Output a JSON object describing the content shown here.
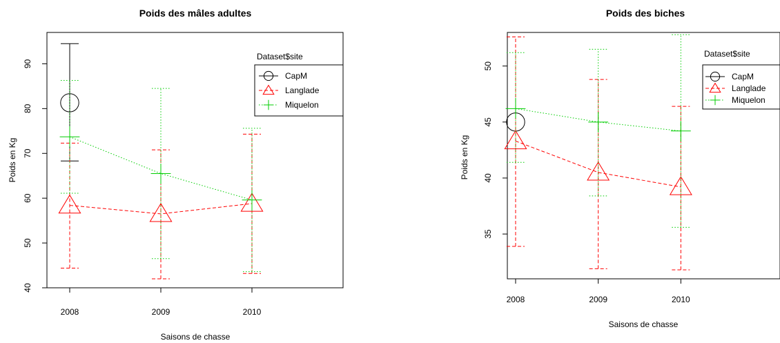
{
  "chart_data": [
    {
      "type": "line",
      "title": "Poids des mâles adultes",
      "xlabel": "Saisons de chasse",
      "ylabel": "Poids en Kg",
      "x": [
        "2008",
        "2009",
        "2010"
      ],
      "xlim": [
        0.75,
        4.0
      ],
      "ylim": [
        40,
        97
      ],
      "yticks": [
        "40",
        "50",
        "60",
        "70",
        "80",
        "90"
      ],
      "legend": {
        "title": "Dataset$site",
        "position": "top-right"
      },
      "series": [
        {
          "name": "CapM",
          "color": "#000000",
          "marker": "circle",
          "dash": "solid",
          "values": [
            81.3,
            null,
            null
          ],
          "lower": [
            68.3,
            null,
            null
          ],
          "upper": [
            94.5,
            null,
            null
          ]
        },
        {
          "name": "Langlade",
          "color": "#ff0000",
          "marker": "triangle",
          "dash": "dashed",
          "values": [
            58.4,
            56.5,
            58.8
          ],
          "lower": [
            44.4,
            42.0,
            43.2
          ],
          "upper": [
            72.3,
            70.8,
            74.3
          ]
        },
        {
          "name": "Miquelon",
          "color": "#00cd00",
          "marker": "plus",
          "dash": "dotted",
          "values": [
            73.7,
            65.5,
            59.6
          ],
          "lower": [
            61.1,
            46.5,
            43.6
          ],
          "upper": [
            86.3,
            84.5,
            75.6
          ]
        }
      ]
    },
    {
      "type": "line",
      "title": "Poids des biches",
      "xlabel": "Saisons de chasse",
      "ylabel": "Poids en Kg",
      "x": [
        "2008",
        "2009",
        "2010"
      ],
      "xlim": [
        0.9,
        4.2
      ],
      "ylim": [
        31.0,
        53.0
      ],
      "yticks": [
        "35",
        "40",
        "45",
        "50"
      ],
      "legend": {
        "title": "Dataset$site",
        "position": "top-right"
      },
      "series": [
        {
          "name": "CapM",
          "color": "#000000",
          "marker": "circle",
          "dash": "solid",
          "values": [
            45.0,
            null,
            null
          ],
          "lower": [
            null,
            null,
            null
          ],
          "upper": [
            null,
            null,
            null
          ]
        },
        {
          "name": "Langlade",
          "color": "#ff0000",
          "marker": "triangle",
          "dash": "dashed",
          "values": [
            43.3,
            40.5,
            39.2
          ],
          "lower": [
            33.9,
            31.9,
            31.8
          ],
          "upper": [
            52.6,
            48.8,
            46.4
          ]
        },
        {
          "name": "Miquelon",
          "color": "#00cd00",
          "marker": "plus",
          "dash": "dotted",
          "values": [
            46.2,
            45.0,
            44.2
          ],
          "lower": [
            41.4,
            38.4,
            35.6
          ],
          "upper": [
            51.2,
            51.5,
            52.8
          ]
        }
      ]
    }
  ]
}
